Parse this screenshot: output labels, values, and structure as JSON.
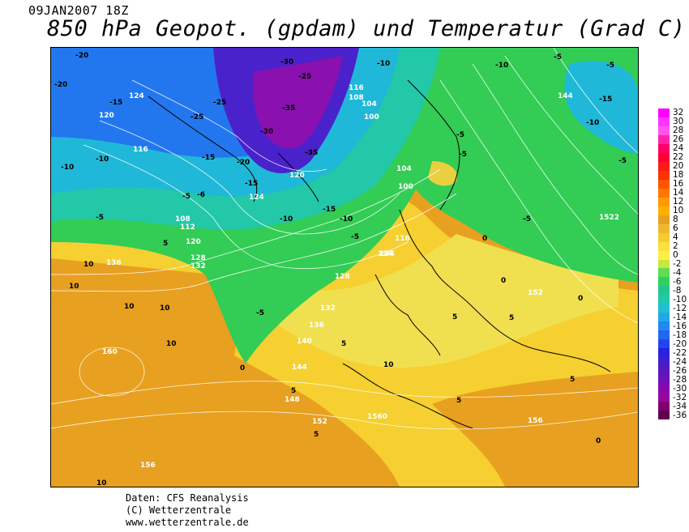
{
  "header": {
    "date": "09JAN2007 18Z",
    "title": "850 hPa Geopot. (gpdam) und  Temperatur (Grad C)"
  },
  "footer": {
    "line1": "Daten: CFS Reanalysis",
    "line2": "(C) Wetterzentrale",
    "line3": "www.wetterzentrale.de"
  },
  "scale": {
    "ticks": [
      "32",
      "30",
      "28",
      "26",
      "24",
      "22",
      "20",
      "18",
      "16",
      "14",
      "12",
      "10",
      "8",
      "6",
      "4",
      "2",
      "0",
      "-2",
      "-4",
      "-6",
      "-8",
      "-10",
      "-12",
      "-14",
      "-16",
      "-18",
      "-20",
      "-22",
      "-24",
      "-26",
      "-28",
      "-30",
      "-32",
      "-34",
      "-36"
    ],
    "colors": [
      "#ff00ff",
      "#ff33ff",
      "#ff55ee",
      "#ff22aa",
      "#ff0066",
      "#ff0033",
      "#ff1a1a",
      "#ff3300",
      "#ff5500",
      "#ff7700",
      "#ff9900",
      "#ffb000",
      "#e8a020",
      "#f0b830",
      "#f5cc30",
      "#fae040",
      "#ffee44",
      "#c8e840",
      "#60dd50",
      "#30d060",
      "#20c890",
      "#20c8b0",
      "#20c0d0",
      "#20a8e8",
      "#2288f0",
      "#2266f0",
      "#2244ee",
      "#2a22dd",
      "#4020cc",
      "#5a18c0",
      "#7010b8",
      "#8808b0",
      "#9806a0",
      "#800070",
      "#600050"
    ]
  },
  "map": {
    "geopotential_labels": [
      "160",
      "156",
      "156",
      "152",
      "152",
      "148",
      "144",
      "140",
      "136",
      "132",
      "132",
      "128",
      "128",
      "124",
      "124",
      "124",
      "120",
      "120",
      "120",
      "116",
      "116",
      "112",
      "108",
      "108",
      "104",
      "104",
      "100",
      "100",
      "136",
      "124",
      "116",
      "144",
      "1522",
      "1560"
    ],
    "temperature_labels": [
      "-20",
      "-20",
      "-15",
      "-10",
      "-10",
      "-5",
      "-5",
      "-10",
      "-15",
      "-15",
      "-25",
      "-25",
      "-30",
      "-35",
      "-35",
      "-30",
      "-25",
      "-20",
      "-15",
      "-10",
      "-10",
      "-5",
      "-5",
      "-5",
      "-10",
      "-15",
      "-5",
      "-5",
      "-5",
      "-5",
      "0",
      "0",
      "0",
      "5",
      "5",
      "5",
      "5",
      "5",
      "5",
      "10",
      "10",
      "10",
      "10",
      "10",
      "10",
      "5",
      "0",
      "0",
      "5",
      "10",
      "-6",
      "-5",
      "-10"
    ]
  }
}
